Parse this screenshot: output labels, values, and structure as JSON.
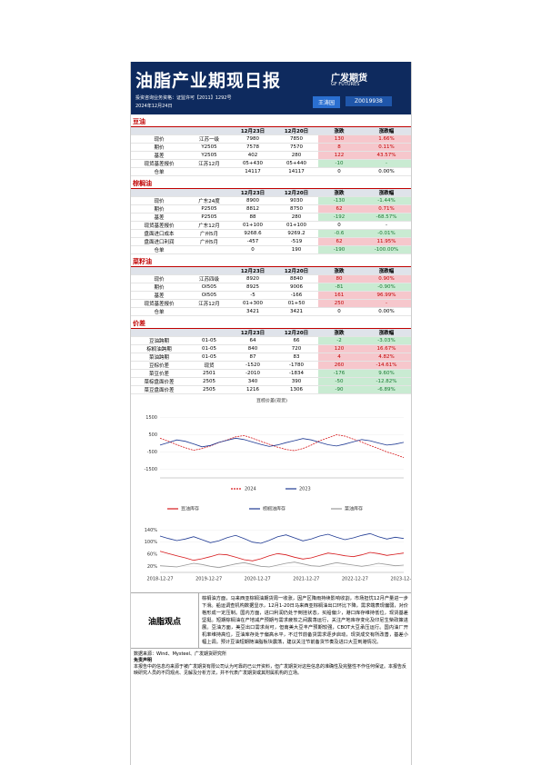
{
  "header": {
    "title": "油脂产业期现日报",
    "brand": "广发期货",
    "brand_en": "GF FUTURES",
    "qualification": "投资咨询业务资格：证监许可【2011】1292号",
    "date": "2024年12月24日",
    "analyst": "王涛园",
    "analyst_id": "Z0019938"
  },
  "sections": [
    {
      "name": "豆油",
      "columns": [
        "12月23日",
        "12月20日",
        "涨跌",
        "涨跌幅"
      ],
      "rows": [
        [
          "现价",
          "江苏一级",
          "7980",
          "7850",
          "130",
          "1.66%"
        ],
        [
          "期价",
          "Y2505",
          "7578",
          "7570",
          "8",
          "0.11%"
        ],
        [
          "基差",
          "Y2505",
          "402",
          "280",
          "122",
          "43.57%"
        ],
        [
          "现货基差报价",
          "江苏12月",
          "05+430",
          "05+440",
          "-10",
          "-"
        ],
        [
          "仓单",
          "",
          "14117",
          "14117",
          "0",
          "0.00%"
        ]
      ]
    },
    {
      "name": "棕榈油",
      "columns": [
        "12月23日",
        "12月20日",
        "涨跌",
        "涨跌幅"
      ],
      "rows": [
        [
          "现价",
          "广东24度",
          "8900",
          "9030",
          "-130",
          "-1.44%"
        ],
        [
          "期价",
          "P2505",
          "8812",
          "8750",
          "62",
          "0.71%"
        ],
        [
          "基差",
          "P2505",
          "88",
          "280",
          "-192",
          "-68.57%"
        ],
        [
          "现货基差报价",
          "广东12月",
          "01+100",
          "01+100",
          "0",
          "-"
        ],
        [
          "盘面进口成本",
          "广州5月",
          "9268.6",
          "9269.2",
          "-0.6",
          "-0.01%"
        ],
        [
          "盘面进口利润",
          "广州5月",
          "-457",
          "-519",
          "62",
          "11.95%"
        ],
        [
          "仓单",
          "",
          "0",
          "190",
          "-190",
          "-100.00%"
        ]
      ]
    },
    {
      "name": "菜籽油",
      "columns": [
        "12月23日",
        "12月20日",
        "涨跌",
        "涨跌幅"
      ],
      "rows": [
        [
          "现价",
          "江苏四级",
          "8920",
          "8840",
          "80",
          "0.90%"
        ],
        [
          "期价",
          "OI505",
          "8925",
          "9006",
          "-81",
          "-0.90%"
        ],
        [
          "基差",
          "OI505",
          "-5",
          "-166",
          "161",
          "96.99%"
        ],
        [
          "现货基差报价",
          "江苏12月",
          "01+300",
          "01+50",
          "250",
          "-"
        ],
        [
          "仓单",
          "",
          "3421",
          "3421",
          "0",
          "0.00%"
        ]
      ]
    },
    {
      "name": "价差",
      "columns": [
        "12月23日",
        "12月20日",
        "涨跌",
        "涨跌幅"
      ],
      "rows": [
        [
          "豆油跨期",
          "01-05",
          "64",
          "66",
          "-2",
          "-3.03%"
        ],
        [
          "棕榈油跨期",
          "01-05",
          "840",
          "720",
          "120",
          "16.67%"
        ],
        [
          "菜油跨期",
          "01-05",
          "87",
          "83",
          "4",
          "4.82%"
        ],
        [
          "豆棕价差",
          "现货",
          "-1520",
          "-1780",
          "260",
          "-14.61%"
        ],
        [
          "菜豆价差",
          "2501",
          "-2010",
          "-1834",
          "-176",
          "9.60%"
        ],
        [
          "菜棕盘面价差",
          "2505",
          "340",
          "390",
          "-50",
          "-12.82%"
        ],
        [
          "菜豆盘面价差",
          "2505",
          "1216",
          "1306",
          "-90",
          "-6.89%"
        ]
      ]
    }
  ],
  "charts": [
    {
      "type": "line",
      "title": "豆棕价差(现货)",
      "ylim": [
        -2000,
        2000
      ],
      "yticks": [
        1500,
        500,
        -500,
        -1500
      ],
      "series": [
        {
          "name": "2024",
          "color": "#d7191c",
          "dash": true,
          "values": [
            300,
            120,
            -80,
            -250,
            -400,
            -300,
            -150,
            50,
            200,
            380,
            450,
            300,
            120,
            -50,
            -220,
            -350,
            -420,
            -300,
            -100,
            150,
            320,
            500,
            420,
            250,
            80,
            -120,
            -300,
            -500,
            -650,
            -820
          ]
        },
        {
          "name": "2023",
          "color": "#1f3a93",
          "dash": false,
          "values": [
            -100,
            50,
            200,
            120,
            -30,
            -200,
            -120,
            60,
            180,
            300,
            220,
            80,
            -60,
            -180,
            -90,
            40,
            160,
            280,
            200,
            60,
            -80,
            -150,
            -40,
            90,
            220,
            150,
            20,
            -100,
            -40,
            60
          ]
        }
      ]
    },
    {
      "type": "line",
      "title": "油脂库存",
      "ylim": [
        0,
        150
      ],
      "yticks": [
        {
          "value": 140,
          "label": "140%"
        },
        {
          "value": 100,
          "label": "100%"
        },
        {
          "value": 60,
          "label": "60%"
        },
        {
          "value": 20,
          "label": "20%"
        }
      ],
      "xlabels": [
        "2018-12-27",
        "2019-12-27",
        "2020-12-27",
        "2021-12-27",
        "2022-12-27",
        "2023-12-27"
      ],
      "series": [
        {
          "name": "豆油库存",
          "color": "#d7191c",
          "dash": false,
          "values": [
            70,
            62,
            55,
            48,
            40,
            45,
            52,
            60,
            58,
            50,
            42,
            38,
            45,
            55,
            62,
            58,
            50,
            44,
            48,
            56,
            64,
            60,
            55,
            52,
            58,
            66,
            62,
            56,
            60,
            64
          ]
        },
        {
          "name": "棕榈油库存",
          "color": "#1f3a93",
          "dash": false,
          "values": [
            120,
            112,
            105,
            110,
            118,
            108,
            98,
            104,
            115,
            122,
            112,
            100,
            96,
            106,
            118,
            124,
            114,
            104,
            110,
            120,
            126,
            116,
            108,
            114,
            122,
            128,
            118,
            110,
            116,
            112
          ]
        },
        {
          "name": "菜油库存",
          "color": "#999999",
          "dash": false,
          "values": [
            22,
            20,
            18,
            24,
            30,
            26,
            20,
            16,
            22,
            28,
            32,
            26,
            20,
            18,
            24,
            30,
            34,
            28,
            22,
            20,
            26,
            32,
            28,
            24,
            20,
            24,
            30,
            26,
            22,
            24
          ]
        }
      ]
    }
  ],
  "viewpoint": {
    "label": "油脂观点",
    "text": "棕榈油方面，马来西亚棕榈油期货周一收涨，因产区降雨持续影响收割，市场担忧12月产量进一步下滑。船运调查机构数据显示，12月1-20日马来西亚棕榈油出口环比下降，需求端表现偏弱，对价格形成一定压制。国内方面，进口利润仍处于倒挂状态，买船偏少，港口库存维持低位，现货基差坚挺。短期棕榈油在产地减产预期与需求疲软之间震荡运行，关注产地库存变化及印尼生柴政策进展。豆油方面，美豆出口需求尚可，但南美大豆丰产预期较强，CBOT大豆承压运行。国内油厂开机率维持高位，豆油库存处于偏高水平，不过节前备货需求逐步启动，现货成交有所改善，基差小幅上调。预计豆油短期随油脂板块震荡，建议关注节前备货节奏及进口大豆到港情况。"
  },
  "footer": {
    "source": "数据来源：Wind、Mysteel、广发期货研究所",
    "disclaimer_title": "免责声明",
    "disclaimer": "本报告中的信息均来源于被广发期货有限公司认为可靠的已公开资料，但广发期货对这些信息的准确性及完整性不作任何保证。本报告反映研究人员的不同观点、见解及分析方法，并不代表广发期货或其附属机构的立场。"
  }
}
